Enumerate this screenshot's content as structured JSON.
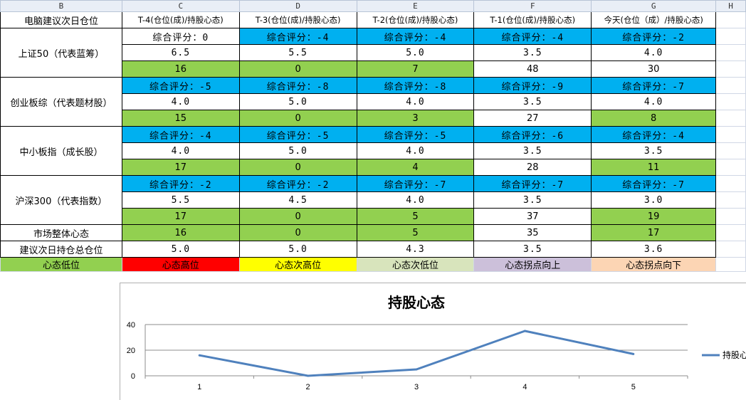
{
  "columns": [
    "B",
    "C",
    "D",
    "E",
    "F",
    "G",
    "H"
  ],
  "header": {
    "b": "电脑建议次日仓位",
    "c": "T-4(仓位(成)/持股心态)",
    "d": "T-3(仓位(成)/持股心态)",
    "e": "T-2(仓位(成)/持股心态)",
    "f": "T-1(仓位(成)/持股心态)",
    "g": "今天(仓位（成）/持股心态)"
  },
  "indices": [
    {
      "name": "上证50（代表蓝筹）",
      "scores": [
        "综合评分：0",
        "综合评分：-4",
        "综合评分：-4",
        "综合评分：-4",
        "综合评分：-2"
      ],
      "positions": [
        "6.5",
        "5.5",
        "5.0",
        "3.5",
        "4.0"
      ],
      "moods": [
        "16",
        "0",
        "7",
        "48",
        "30"
      ]
    },
    {
      "name": "创业板综（代表题材股）",
      "scores": [
        "综合评分：-5",
        "综合评分：-8",
        "综合评分：-8",
        "综合评分：-9",
        "综合评分：-7"
      ],
      "positions": [
        "4.0",
        "5.0",
        "4.0",
        "3.5",
        "4.0"
      ],
      "moods": [
        "15",
        "0",
        "3",
        "27",
        "8"
      ]
    },
    {
      "name": "中小板指（成长股）",
      "scores": [
        "综合评分：-4",
        "综合评分：-5",
        "综合评分：-5",
        "综合评分：-6",
        "综合评分：-4"
      ],
      "positions": [
        "4.0",
        "5.0",
        "4.0",
        "3.5",
        "3.5"
      ],
      "moods": [
        "17",
        "0",
        "4",
        "28",
        "11"
      ]
    },
    {
      "name": "沪深300（代表指数）",
      "scores": [
        "综合评分：-2",
        "综合评分：-2",
        "综合评分：-7",
        "综合评分：-7",
        "综合评分：-7"
      ],
      "positions": [
        "5.5",
        "4.5",
        "4.0",
        "3.5",
        "3.0"
      ],
      "moods": [
        "17",
        "0",
        "5",
        "37",
        "19"
      ]
    }
  ],
  "market": {
    "label": "市场整体心态",
    "values": [
      "16",
      "0",
      "5",
      "35",
      "17"
    ]
  },
  "total": {
    "label": "建议次日持仓总仓位",
    "values": [
      "5.0",
      "5.0",
      "4.3",
      "3.5",
      "3.6"
    ]
  },
  "legend": [
    "心态低位",
    "心态高位",
    "心态次高位",
    "心态次低位",
    "心态拐点向上",
    "心态拐点向下"
  ],
  "colors": {
    "score_bg": "#00b0f0",
    "mood_green": "#92d050",
    "red": "#ff0000",
    "yellow": "#ffff00",
    "sage": "#d8e4bc",
    "lavender": "#ccc0da",
    "peach": "#fcd5b4",
    "line": "#4f81bd"
  },
  "chart_data": {
    "type": "line",
    "title": "持股心态",
    "categories": [
      "1",
      "2",
      "3",
      "4",
      "5"
    ],
    "series": [
      {
        "name": "持股心",
        "values": [
          16,
          0,
          5,
          35,
          17
        ]
      }
    ],
    "yticks": [
      "0",
      "20",
      "40"
    ],
    "ylim": [
      0,
      40
    ],
    "grid": true,
    "legend_position": "right"
  }
}
